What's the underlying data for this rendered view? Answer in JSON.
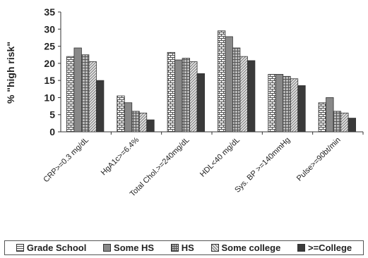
{
  "chart_data": {
    "type": "bar",
    "title": "",
    "xlabel": "",
    "ylabel": "% \"high risk\"",
    "ylim": [
      0,
      35
    ],
    "yticks": [
      "0",
      "5",
      "10",
      "15",
      "20",
      "25",
      "30",
      "35"
    ],
    "grid": false,
    "legend_position": "bottom",
    "categories": [
      "CRP>=0.3 mg/dL",
      "HgA1c>=6.4%",
      "Total Chol.>=240mg/dL",
      "HDL<40 mg/dL",
      "Sys. BP >=140mmHg",
      "Pulse>=90bt/min"
    ],
    "series": [
      {
        "name": "Grade School",
        "values": [
          22.0,
          10.5,
          23.2,
          29.5,
          16.8,
          8.5
        ],
        "color": "#eeeeee",
        "pattern": "brick"
      },
      {
        "name": "Some HS",
        "values": [
          24.5,
          8.5,
          21.0,
          27.8,
          16.8,
          10.0
        ],
        "color": "#888888",
        "pattern": "solid"
      },
      {
        "name": "HS",
        "values": [
          22.5,
          6.0,
          21.5,
          24.5,
          16.2,
          6.0
        ],
        "color": "#b0b0b0",
        "pattern": "grid"
      },
      {
        "name": "Some college",
        "values": [
          20.5,
          5.5,
          20.5,
          22.0,
          15.5,
          5.5
        ],
        "color": "#d8d8d8",
        "pattern": "diagonal"
      },
      {
        "name": ">=College",
        "values": [
          15.0,
          3.5,
          17.0,
          20.8,
          13.5,
          4.0
        ],
        "color": "#3a3a3a",
        "pattern": "solid"
      }
    ]
  }
}
